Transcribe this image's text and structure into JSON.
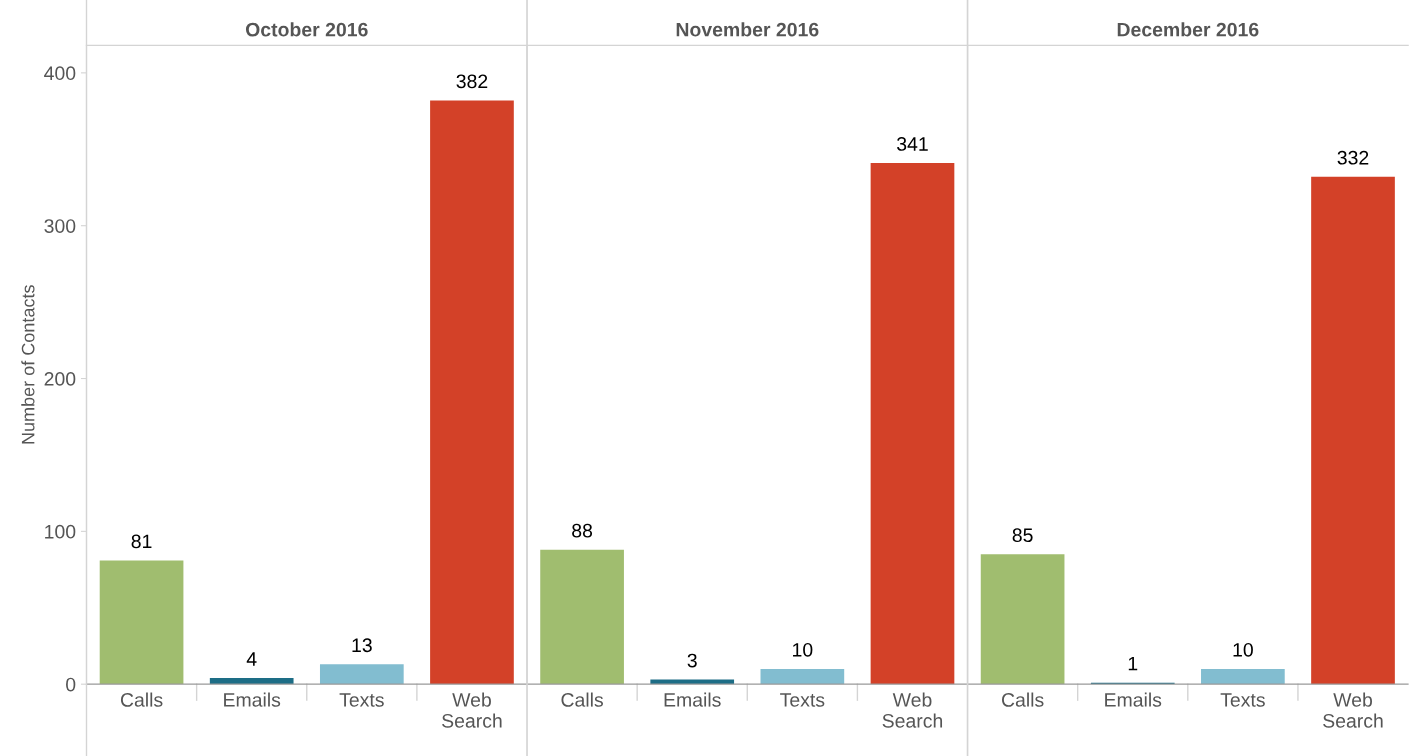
{
  "chart_data": [
    {
      "type": "bar",
      "title": "October 2016",
      "ylabel": "Number of Contacts",
      "categories": [
        "Calls",
        "Emails",
        "Texts",
        "Web\nSearch"
      ],
      "values": [
        81,
        4,
        13,
        382
      ],
      "colors": [
        "#a0bd6f",
        "#1d6d86",
        "#82bdd0",
        "#d34128"
      ],
      "data_labels": true,
      "ylim": [
        0,
        418
      ],
      "yticks": [
        0,
        100,
        200,
        300,
        400
      ],
      "grid": false,
      "legend": false
    },
    {
      "type": "bar",
      "title": "November 2016",
      "categories": [
        "Calls",
        "Emails",
        "Texts",
        "Web\nSearch"
      ],
      "values": [
        88,
        3,
        10,
        341
      ],
      "colors": [
        "#a0bd6f",
        "#1d6d86",
        "#82bdd0",
        "#d34128"
      ],
      "data_labels": true,
      "ylim": [
        0,
        418
      ],
      "yticks": [
        0,
        100,
        200,
        300,
        400
      ],
      "tick_labels": "x",
      "grid": false,
      "legend": false
    },
    {
      "type": "bar",
      "title": "December 2016",
      "categories": [
        "Calls",
        "Emails",
        "Texts",
        "Web\nSearch"
      ],
      "values": [
        85,
        1,
        10,
        332
      ],
      "colors": [
        "#a0bd6f",
        "#1d6d86",
        "#82bdd0",
        "#d34128"
      ],
      "data_labels": true,
      "ylim": [
        0,
        418
      ],
      "yticks": [
        0,
        100,
        200,
        300,
        400
      ],
      "tick_labels": "x",
      "grid": false,
      "legend": false
    }
  ]
}
